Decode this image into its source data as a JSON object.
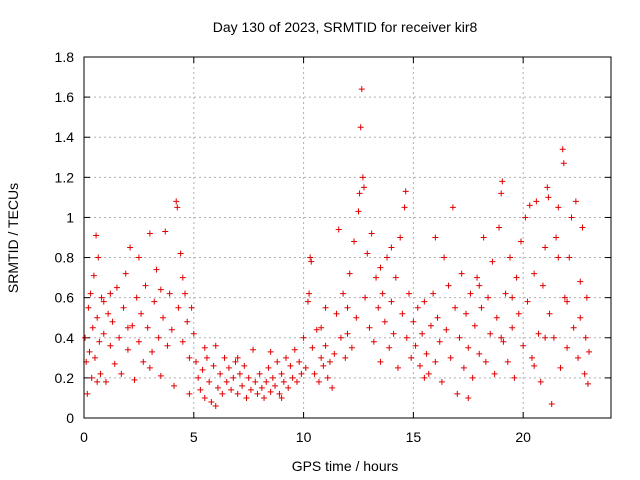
{
  "chart_data": {
    "type": "scatter",
    "title": "Day 130 of 2023, SRMTID for receiver kir8",
    "xlabel": "GPS time / hours",
    "ylabel": "SRMTID / TECUs",
    "xlim": [
      0,
      24
    ],
    "ylim": [
      0,
      1.8
    ],
    "xticks": [
      0,
      5,
      10,
      15,
      20
    ],
    "xtick_labels": [
      "0",
      "5",
      "10",
      "15",
      "20"
    ],
    "yticks": [
      0,
      0.2,
      0.4,
      0.6,
      0.8,
      1.0,
      1.2,
      1.4,
      1.6,
      1.8
    ],
    "ytick_labels": [
      "0",
      "0.2",
      "0.4",
      "0.6",
      "0.8",
      "1",
      "1.2",
      "1.4",
      "1.6",
      "1.8"
    ],
    "grid": true,
    "marker": "plus",
    "color": "#e00000",
    "series": [
      {
        "name": "SRMTID",
        "points": [
          [
            0.05,
            0.4
          ],
          [
            0.1,
            0.28
          ],
          [
            0.15,
            0.12
          ],
          [
            0.2,
            0.55
          ],
          [
            0.25,
            0.33
          ],
          [
            0.3,
            0.62
          ],
          [
            0.35,
            0.2
          ],
          [
            0.4,
            0.45
          ],
          [
            0.45,
            0.71
          ],
          [
            0.5,
            0.3
          ],
          [
            0.55,
            0.91
          ],
          [
            0.6,
            0.5
          ],
          [
            0.65,
            0.8
          ],
          [
            0.7,
            0.38
          ],
          [
            0.75,
            0.22
          ],
          [
            0.8,
            0.6
          ],
          [
            0.9,
            0.42
          ],
          [
            1.0,
            0.18
          ],
          [
            1.1,
            0.52
          ],
          [
            1.2,
            0.36
          ],
          [
            1.3,
            0.48
          ],
          [
            1.4,
            0.27
          ],
          [
            1.5,
            0.65
          ],
          [
            1.6,
            0.4
          ],
          [
            1.7,
            0.22
          ],
          [
            1.8,
            0.55
          ],
          [
            1.9,
            0.72
          ],
          [
            2.0,
            0.34
          ],
          [
            2.1,
            0.85
          ],
          [
            2.2,
            0.46
          ],
          [
            2.3,
            0.19
          ],
          [
            2.4,
            0.6
          ],
          [
            2.5,
            0.38
          ],
          [
            2.6,
            0.52
          ],
          [
            2.7,
            0.28
          ],
          [
            2.8,
            0.66
          ],
          [
            2.9,
            0.45
          ],
          [
            3.0,
            0.92
          ],
          [
            3.1,
            0.33
          ],
          [
            3.2,
            0.58
          ],
          [
            3.3,
            0.74
          ],
          [
            3.4,
            0.4
          ],
          [
            3.5,
            0.21
          ],
          [
            3.6,
            0.5
          ],
          [
            3.7,
            0.93
          ],
          [
            3.8,
            0.36
          ],
          [
            3.9,
            0.62
          ],
          [
            4.0,
            0.44
          ],
          [
            4.1,
            0.16
          ],
          [
            4.2,
            1.08
          ],
          [
            4.25,
            1.05
          ],
          [
            4.3,
            0.55
          ],
          [
            4.4,
            0.82
          ],
          [
            4.5,
            0.38
          ],
          [
            4.6,
            0.62
          ],
          [
            4.7,
            0.48
          ],
          [
            4.8,
            0.3
          ],
          [
            4.9,
            0.55
          ],
          [
            5.0,
            0.42
          ],
          [
            5.1,
            0.28
          ],
          [
            5.2,
            0.2
          ],
          [
            5.3,
            0.14
          ],
          [
            5.4,
            0.24
          ],
          [
            5.5,
            0.1
          ],
          [
            5.6,
            0.3
          ],
          [
            5.7,
            0.18
          ],
          [
            5.8,
            0.08
          ],
          [
            5.9,
            0.26
          ],
          [
            6.0,
            0.36
          ],
          [
            6.1,
            0.15
          ],
          [
            6.2,
            0.22
          ],
          [
            6.3,
            0.12
          ],
          [
            6.4,
            0.3
          ],
          [
            6.5,
            0.18
          ],
          [
            6.6,
            0.25
          ],
          [
            6.7,
            0.14
          ],
          [
            6.8,
            0.2
          ],
          [
            6.9,
            0.28
          ],
          [
            7.0,
            0.12
          ],
          [
            7.1,
            0.22
          ],
          [
            7.2,
            0.16
          ],
          [
            7.3,
            0.26
          ],
          [
            7.4,
            0.1
          ],
          [
            7.5,
            0.2
          ],
          [
            7.6,
            0.14
          ],
          [
            7.7,
            0.34
          ],
          [
            7.8,
            0.18
          ],
          [
            7.9,
            0.12
          ],
          [
            8.0,
            0.22
          ],
          [
            8.1,
            0.15
          ],
          [
            8.2,
            0.1
          ],
          [
            8.3,
            0.18
          ],
          [
            8.4,
            0.25
          ],
          [
            8.5,
            0.13
          ],
          [
            8.6,
            0.2
          ],
          [
            8.7,
            0.16
          ],
          [
            8.8,
            0.28
          ],
          [
            8.9,
            0.12
          ],
          [
            9.0,
            0.22
          ],
          [
            9.1,
            0.18
          ],
          [
            9.2,
            0.3
          ],
          [
            9.3,
            0.15
          ],
          [
            9.4,
            0.26
          ],
          [
            9.5,
            0.2
          ],
          [
            9.6,
            0.34
          ],
          [
            9.7,
            0.18
          ],
          [
            9.8,
            0.28
          ],
          [
            9.9,
            0.22
          ],
          [
            10.0,
            0.4
          ],
          [
            10.1,
            0.25
          ],
          [
            10.2,
            0.58
          ],
          [
            10.25,
            0.62
          ],
          [
            10.3,
            0.8
          ],
          [
            10.35,
            0.78
          ],
          [
            10.4,
            0.35
          ],
          [
            10.5,
            0.22
          ],
          [
            10.6,
            0.44
          ],
          [
            10.7,
            0.18
          ],
          [
            10.8,
            0.3
          ],
          [
            10.9,
            0.26
          ],
          [
            11.0,
            0.36
          ],
          [
            11.1,
            0.2
          ],
          [
            11.2,
            0.28
          ],
          [
            11.3,
            0.15
          ],
          [
            11.4,
            0.32
          ],
          [
            11.5,
            0.52
          ],
          [
            11.6,
            0.94
          ],
          [
            11.7,
            0.4
          ],
          [
            11.8,
            0.62
          ],
          [
            11.9,
            0.3
          ],
          [
            12.0,
            0.55
          ],
          [
            12.1,
            0.72
          ],
          [
            12.2,
            0.35
          ],
          [
            12.3,
            0.88
          ],
          [
            12.4,
            0.5
          ],
          [
            12.5,
            1.03
          ],
          [
            12.55,
            1.12
          ],
          [
            12.6,
            1.45
          ],
          [
            12.65,
            1.64
          ],
          [
            12.7,
            1.2
          ],
          [
            12.75,
            1.15
          ],
          [
            12.8,
            0.6
          ],
          [
            12.9,
            0.82
          ],
          [
            13.0,
            0.45
          ],
          [
            13.1,
            0.92
          ],
          [
            13.2,
            0.38
          ],
          [
            13.3,
            0.7
          ],
          [
            13.4,
            0.55
          ],
          [
            13.5,
            0.28
          ],
          [
            13.6,
            0.62
          ],
          [
            13.7,
            0.48
          ],
          [
            13.8,
            0.8
          ],
          [
            13.9,
            0.35
          ],
          [
            14.0,
            0.58
          ],
          [
            14.1,
            0.42
          ],
          [
            14.2,
            0.7
          ],
          [
            14.3,
            0.25
          ],
          [
            14.4,
            0.9
          ],
          [
            14.5,
            0.52
          ],
          [
            14.6,
            1.05
          ],
          [
            14.65,
            1.13
          ],
          [
            14.7,
            0.4
          ],
          [
            14.8,
            0.62
          ],
          [
            14.9,
            0.3
          ],
          [
            15.0,
            0.48
          ],
          [
            15.1,
            0.36
          ],
          [
            15.2,
            0.55
          ],
          [
            15.3,
            0.26
          ],
          [
            15.4,
            0.42
          ],
          [
            15.5,
            0.58
          ],
          [
            15.6,
            0.32
          ],
          [
            15.7,
            0.22
          ],
          [
            15.8,
            0.46
          ],
          [
            15.9,
            0.62
          ],
          [
            16.0,
            0.28
          ],
          [
            16.1,
            0.5
          ],
          [
            16.2,
            0.38
          ],
          [
            16.3,
            0.18
          ],
          [
            16.4,
            0.8
          ],
          [
            16.5,
            0.44
          ],
          [
            16.6,
            0.66
          ],
          [
            16.7,
            0.3
          ],
          [
            16.8,
            1.05
          ],
          [
            16.9,
            0.55
          ],
          [
            17.0,
            0.12
          ],
          [
            17.1,
            0.4
          ],
          [
            17.2,
            0.72
          ],
          [
            17.3,
            0.25
          ],
          [
            17.4,
            0.52
          ],
          [
            17.5,
            0.35
          ],
          [
            17.6,
            0.62
          ],
          [
            17.7,
            0.2
          ],
          [
            17.8,
            0.46
          ],
          [
            17.9,
            0.7
          ],
          [
            18.0,
            0.32
          ],
          [
            18.1,
            0.55
          ],
          [
            18.2,
            0.9
          ],
          [
            18.3,
            0.28
          ],
          [
            18.4,
            0.6
          ],
          [
            18.5,
            0.42
          ],
          [
            18.6,
            0.78
          ],
          [
            18.7,
            0.22
          ],
          [
            18.8,
            0.5
          ],
          [
            18.9,
            0.95
          ],
          [
            19.0,
            1.12
          ],
          [
            19.05,
            1.18
          ],
          [
            19.1,
            0.38
          ],
          [
            19.2,
            0.62
          ],
          [
            19.3,
            0.28
          ],
          [
            19.4,
            0.8
          ],
          [
            19.5,
            0.45
          ],
          [
            19.6,
            0.2
          ],
          [
            19.7,
            0.7
          ],
          [
            19.8,
            0.52
          ],
          [
            19.9,
            0.88
          ],
          [
            20.0,
            0.36
          ],
          [
            20.1,
            1.0
          ],
          [
            20.2,
            0.58
          ],
          [
            20.3,
            1.06
          ],
          [
            20.4,
            0.3
          ],
          [
            20.5,
            0.72
          ],
          [
            20.6,
            1.08
          ],
          [
            20.7,
            0.42
          ],
          [
            20.8,
            0.18
          ],
          [
            20.9,
            0.66
          ],
          [
            21.0,
            0.85
          ],
          [
            21.1,
            1.15
          ],
          [
            21.15,
            1.1
          ],
          [
            21.2,
            0.52
          ],
          [
            21.3,
            0.07
          ],
          [
            21.4,
            0.4
          ],
          [
            21.5,
            0.9
          ],
          [
            21.6,
            1.05
          ],
          [
            21.7,
            0.25
          ],
          [
            21.8,
            1.34
          ],
          [
            21.85,
            1.27
          ],
          [
            21.9,
            0.6
          ],
          [
            22.0,
            0.35
          ],
          [
            22.1,
            0.8
          ],
          [
            22.2,
            1.0
          ],
          [
            22.3,
            0.45
          ],
          [
            22.4,
            1.08
          ],
          [
            22.5,
            0.3
          ],
          [
            22.6,
            0.68
          ],
          [
            22.7,
            0.95
          ],
          [
            22.8,
            0.22
          ],
          [
            22.85,
            0.4
          ],
          [
            22.9,
            0.6
          ],
          [
            22.95,
            0.17
          ],
          [
            23.0,
            0.33
          ],
          [
            0.6,
            0.18
          ],
          [
            1.2,
            0.62
          ],
          [
            2.5,
            0.8
          ],
          [
            3.5,
            0.64
          ],
          [
            4.8,
            0.12
          ],
          [
            6.0,
            0.06
          ],
          [
            8.5,
            0.33
          ],
          [
            11.0,
            0.55
          ],
          [
            13.5,
            0.75
          ],
          [
            16.0,
            0.9
          ],
          [
            17.5,
            0.1
          ],
          [
            19.5,
            0.6
          ],
          [
            20.5,
            0.26
          ],
          [
            21.0,
            0.4
          ],
          [
            22.0,
            0.58
          ],
          [
            0.9,
            0.58
          ],
          [
            2.0,
            0.45
          ],
          [
            3.0,
            0.25
          ],
          [
            4.5,
            0.7
          ],
          [
            5.5,
            0.35
          ],
          [
            7.0,
            0.3
          ],
          [
            9.0,
            0.1
          ],
          [
            10.8,
            0.45
          ],
          [
            12.0,
            0.42
          ],
          [
            14.0,
            0.85
          ],
          [
            15.5,
            0.2
          ],
          [
            18.0,
            0.66
          ],
          [
            19.0,
            0.4
          ],
          [
            21.6,
            0.8
          ],
          [
            22.6,
            0.5
          ]
        ]
      }
    ]
  }
}
